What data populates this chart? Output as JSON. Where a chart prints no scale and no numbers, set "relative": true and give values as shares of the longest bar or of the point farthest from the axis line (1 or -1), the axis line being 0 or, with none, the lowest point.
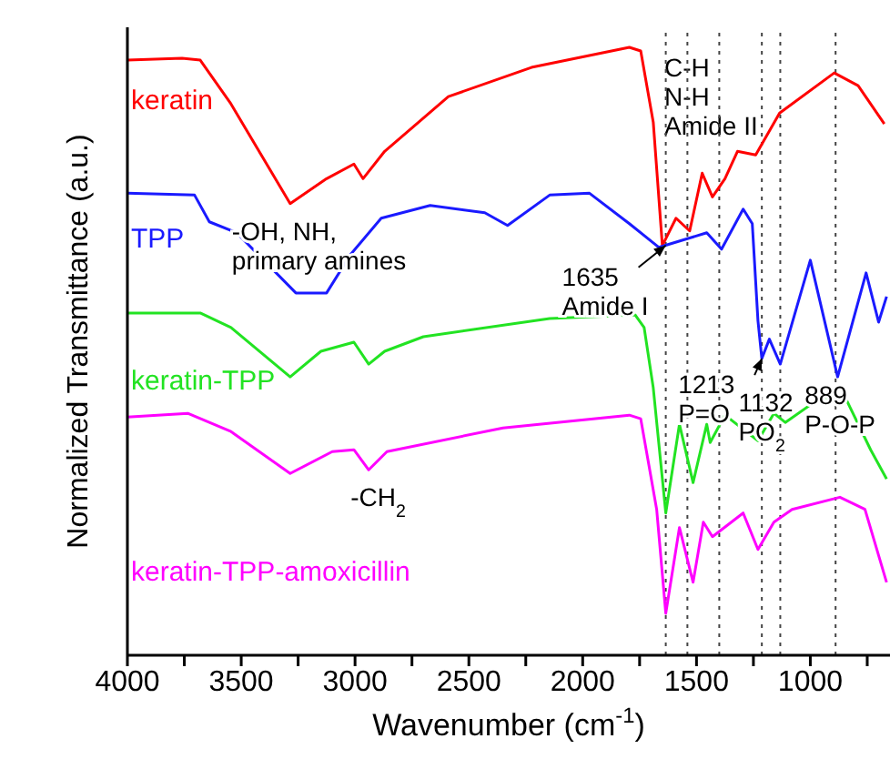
{
  "chart_data": {
    "type": "line",
    "relative": true,
    "xlabel": "Wavenumber (cm$^{-1}$)",
    "ylabel": "Normalized Transmittance (a.u.)",
    "xlim": [
      4000,
      650
    ],
    "xticks": [
      4000,
      {
        "value": 3750,
        "label": null
      },
      3500,
      {
        "value": 3250,
        "label": null
      },
      3000,
      {
        "value": 2750,
        "label": null
      },
      2500,
      {
        "value": 2250,
        "label": null
      },
      2000,
      {
        "value": 1750,
        "label": null
      },
      1500,
      {
        "value": 1250,
        "label": null
      },
      1000,
      {
        "value": 750,
        "label": null
      }
    ],
    "marker": "none",
    "line_style": "solid",
    "series": [
      {
        "name": "keratin",
        "color": "#ff0000",
        "x": [
          4000,
          3760,
          3680,
          3545,
          3285,
          3125,
          3005,
          2965,
          2870,
          2590,
          2225,
          1795,
          1745,
          1690,
          1650,
          1590,
          1530,
          1475,
          1430,
          1375,
          1320,
          1240,
          1135,
          895,
          790,
          675
        ],
        "values": [
          0.979,
          0.982,
          0.979,
          0.907,
          0.743,
          0.784,
          0.808,
          0.784,
          0.829,
          0.919,
          0.967,
          1.0,
          0.994,
          0.877,
          0.674,
          0.719,
          0.698,
          0.793,
          0.754,
          0.784,
          0.829,
          0.823,
          0.892,
          0.958,
          0.937,
          0.874
        ]
      },
      {
        "name": "TPP",
        "color": "#1a1aff",
        "x": [
          4000,
          3705,
          3640,
          3520,
          3260,
          3125,
          3020,
          2885,
          2670,
          2430,
          2330,
          2145,
          1970,
          1795,
          1665,
          1455,
          1390,
          1295,
          1255,
          1230,
          1213,
          1180,
          1132,
          1000,
          880,
          755,
          700,
          665
        ],
        "values": [
          0.76,
          0.757,
          0.713,
          0.695,
          0.596,
          0.596,
          0.659,
          0.719,
          0.74,
          0.728,
          0.707,
          0.757,
          0.76,
          0.71,
          0.671,
          0.695,
          0.668,
          0.734,
          0.71,
          0.55,
          0.488,
          0.52,
          0.479,
          0.65,
          0.458,
          0.629,
          0.548,
          0.59
        ]
      },
      {
        "name": "keratin-TPP",
        "color": "#22e322",
        "x": [
          4000,
          3680,
          3545,
          3285,
          3150,
          3005,
          2940,
          2870,
          2700,
          2145,
          1770,
          1730,
          1690,
          1635,
          1575,
          1515,
          1455,
          1440,
          1375,
          1230,
          1160,
          1110,
          950,
          840,
          735,
          665
        ],
        "values": [
          0.563,
          0.563,
          0.539,
          0.458,
          0.5,
          0.515,
          0.479,
          0.5,
          0.524,
          0.554,
          0.56,
          0.539,
          0.44,
          0.234,
          0.38,
          0.284,
          0.38,
          0.35,
          0.395,
          0.353,
          0.398,
          0.383,
          0.425,
          0.419,
          0.338,
          0.29
        ]
      },
      {
        "name": "keratin-TPP-amoxicillin",
        "color": "#ff00ff",
        "x": [
          4000,
          3735,
          3545,
          3285,
          3100,
          3005,
          2940,
          2860,
          2350,
          1795,
          1745,
          1675,
          1635,
          1575,
          1515,
          1470,
          1430,
          1295,
          1230,
          1160,
          1080,
          870,
          760,
          665
        ],
        "values": [
          0.392,
          0.398,
          0.368,
          0.299,
          0.335,
          0.338,
          0.305,
          0.335,
          0.374,
          0.395,
          0.389,
          0.24,
          0.069,
          0.21,
          0.12,
          0.219,
          0.195,
          0.234,
          0.174,
          0.219,
          0.24,
          0.26,
          0.24,
          0.12
        ]
      }
    ],
    "ref_lines": [
      {
        "axis": "x",
        "value": 1635,
        "color": "#444444",
        "line_style": "dotted"
      },
      {
        "axis": "x",
        "value": 1540,
        "color": "#444444",
        "line_style": "dotted"
      },
      {
        "axis": "x",
        "value": 1400,
        "color": "#444444",
        "line_style": "dotted"
      },
      {
        "axis": "x",
        "value": 1213,
        "color": "#444444",
        "line_style": "dotted"
      },
      {
        "axis": "x",
        "value": 1132,
        "color": "#444444",
        "line_style": "dotted"
      },
      {
        "axis": "x",
        "value": 889,
        "color": "#444444",
        "line_style": "dotted"
      }
    ],
    "annotations": [
      "C-H\nN-H\nAmide II",
      {
        "text": "-OH, NH,\nprimary amines",
        "x": 3285,
        "y": 0.743
      },
      {
        "text": "1635\nAmide I",
        "x": 1635,
        "y": 0.674
      },
      {
        "text": "1213\nP=O",
        "x": 1213,
        "y": 0.488
      },
      {
        "text": "1132\nPO$_{2}$",
        "x": 1132,
        "y": 0.479
      },
      {
        "text": "889\nP-O-P",
        "x": 889,
        "y": 0.458
      },
      {
        "text": "-CH$_{2}$",
        "x": 2940,
        "y": 0.305
      }
    ]
  }
}
